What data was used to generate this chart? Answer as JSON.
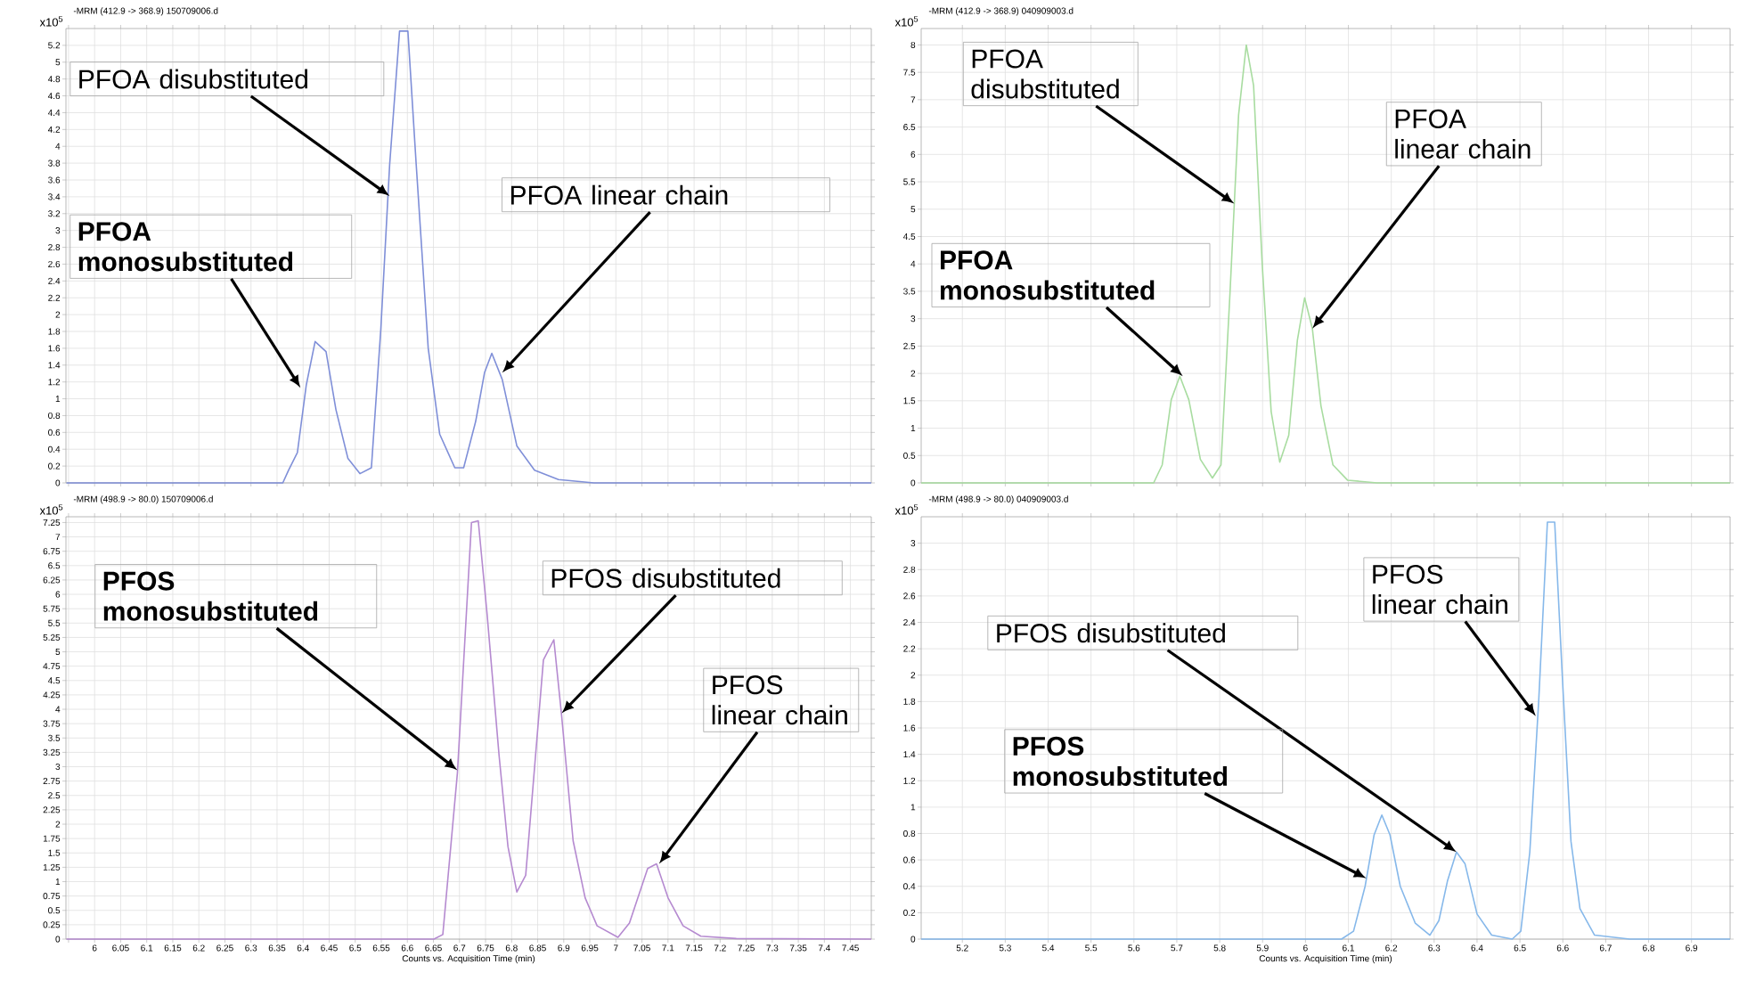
{
  "chart_data": [
    {
      "type": "line",
      "title": "-MRM (412.9 -> 368.9) 150709006.d",
      "ylabel": "x10$^{5}$",
      "tick_labels": "y",
      "grid": true,
      "xlim": [
        5.945,
        7.49
      ],
      "ylim": [
        0,
        5.4
      ],
      "xticks": [
        {
          "value": 5.95,
          "label": null
        },
        6,
        6.05,
        6.1,
        6.15,
        6.2,
        6.25,
        6.3,
        6.35,
        6.4,
        6.45,
        6.5,
        6.55,
        6.6,
        6.65,
        6.7,
        6.75,
        6.8,
        6.85,
        6.9,
        6.95,
        7,
        7.05,
        7.1,
        7.15,
        7.2,
        7.25,
        7.3,
        7.35,
        7.4,
        7.45
      ],
      "yticks": [
        0,
        0.2,
        0.4,
        0.6,
        0.8,
        1,
        1.2,
        1.4,
        1.6,
        1.8,
        2,
        2.2,
        2.4,
        2.6,
        2.8,
        3,
        3.2,
        3.4,
        3.6,
        3.8,
        4,
        4.2,
        4.4,
        4.6,
        4.8,
        5,
        5.2
      ],
      "series": [
        {
          "color": "#7f8fd8",
          "x": [
            5.946,
            6.361,
            6.372,
            6.389,
            6.406,
            6.423,
            6.444,
            6.463,
            6.486,
            6.509,
            6.531,
            6.549,
            6.566,
            6.585,
            6.601,
            6.617,
            6.64,
            6.662,
            6.691,
            6.708,
            6.731,
            6.748,
            6.762,
            6.782,
            6.81,
            6.844,
            6.89,
            6.958,
            7.49
          ],
          "values": [
            0,
            0,
            0.15,
            0.36,
            1.16,
            1.68,
            1.56,
            0.87,
            0.29,
            0.11,
            0.18,
            1.82,
            3.78,
            5.37,
            5.37,
            3.78,
            1.6,
            0.58,
            0.18,
            0.18,
            0.73,
            1.31,
            1.54,
            1.23,
            0.44,
            0.15,
            0.04,
            0,
            0
          ]
        }
      ],
      "annotations": [
        {
          "text": "PFOA disubstituted",
          "x": 6.566,
          "y": 3.41
        },
        {
          "text": "PFOA linear chain",
          "x": 6.782,
          "y": 1.31
        },
        {
          "text": "PFOA monosubstituted",
          "x": 6.395,
          "y": 1.13
        }
      ]
    },
    {
      "type": "line",
      "title": "-MRM (412.9 -> 368.9) 040909003.d",
      "ylabel": "x10$^{5}$",
      "tick_labels": "y",
      "grid": true,
      "xlim": [
        5.104,
        6.99
      ],
      "ylim": [
        0,
        8.3
      ],
      "xticks": [
        5.2,
        5.3,
        5.4,
        5.5,
        5.6,
        5.7,
        5.8,
        5.9,
        6,
        6.1,
        6.2,
        6.3,
        6.4,
        6.5,
        6.6,
        6.7,
        6.8,
        6.9
      ],
      "yticks": [
        0,
        0.5,
        1,
        1.5,
        2,
        2.5,
        3,
        3.5,
        4,
        4.5,
        5,
        5.5,
        6,
        6.5,
        7,
        7.5,
        8
      ],
      "series": [
        {
          "color": "#a8dca0",
          "x": [
            5.104,
            5.646,
            5.666,
            5.687,
            5.707,
            5.728,
            5.755,
            5.783,
            5.803,
            5.824,
            5.844,
            5.862,
            5.879,
            5.899,
            5.92,
            5.94,
            5.961,
            5.981,
            5.998,
            6.016,
            6.036,
            6.064,
            6.098,
            6.167,
            6.99
          ],
          "values": [
            0,
            0,
            0.33,
            1.52,
            1.95,
            1.52,
            0.43,
            0.09,
            0.33,
            3.47,
            6.72,
            8.0,
            7.26,
            4.01,
            1.3,
            0.38,
            0.87,
            2.6,
            3.38,
            2.82,
            1.41,
            0.33,
            0.05,
            0,
            0
          ]
        }
      ],
      "annotations": [
        {
          "text": "PFOA disubstituted",
          "x": 5.834,
          "y": 5.1
        },
        {
          "text": "PFOA linear chain",
          "x": 6.016,
          "y": 2.82
        },
        {
          "text": "PFOA monosubstituted",
          "x": 5.714,
          "y": 1.95
        }
      ]
    },
    {
      "type": "line",
      "title": "-MRM (498.9 -> 80.0) 150709006.d",
      "ylabel": "x10$^{5}$",
      "xlabel": "Counts vs. Acquisition Time (min)",
      "grid": true,
      "xlim": [
        5.945,
        7.49
      ],
      "ylim": [
        0,
        7.35
      ],
      "xticks": [
        {
          "value": 5.95,
          "label": null
        },
        6,
        6.05,
        6.1,
        6.15,
        6.2,
        6.25,
        6.3,
        6.35,
        6.4,
        6.45,
        6.5,
        6.55,
        6.6,
        6.65,
        6.7,
        6.75,
        6.8,
        6.85,
        6.9,
        6.95,
        7,
        7.05,
        7.1,
        7.15,
        7.2,
        7.25,
        7.3,
        7.35,
        7.4,
        7.45
      ],
      "yticks": [
        0,
        0.25,
        0.5,
        0.75,
        1,
        1.25,
        1.5,
        1.75,
        2,
        2.25,
        2.5,
        2.75,
        3,
        3.25,
        3.5,
        3.75,
        4,
        4.25,
        4.5,
        4.75,
        5,
        5.25,
        5.5,
        5.75,
        6,
        6.25,
        6.5,
        6.75,
        7,
        7.25
      ],
      "series": [
        {
          "color": "#b58ad0",
          "x": [
            5.946,
            6.651,
            6.668,
            6.696,
            6.723,
            6.736,
            6.753,
            6.776,
            6.793,
            6.81,
            6.827,
            6.861,
            6.881,
            6.896,
            6.918,
            6.941,
            6.964,
            7.004,
            7.026,
            7.061,
            7.078,
            7.1,
            7.129,
            7.163,
            7.231,
            7.49
          ],
          "values": [
            0,
            0,
            0.08,
            2.89,
            7.25,
            7.28,
            5.65,
            3.19,
            1.61,
            0.82,
            1.11,
            4.86,
            5.21,
            3.88,
            1.71,
            0.72,
            0.23,
            0.03,
            0.28,
            1.23,
            1.31,
            0.72,
            0.23,
            0.05,
            0.01,
            0
          ]
        }
      ],
      "annotations": [
        {
          "text": "PFOS monosubstituted",
          "x": 6.696,
          "y": 2.94
        },
        {
          "text": "PFOS disubstituted",
          "x": 6.896,
          "y": 3.93
        },
        {
          "text": "PFOS linear chain",
          "x": 7.083,
          "y": 1.31
        }
      ]
    },
    {
      "type": "line",
      "title": "-MRM (498.9 -> 80.0) 040909003.d",
      "ylabel": "x10$^{5}$",
      "xlabel": "Counts vs. Acquisition Time (min)",
      "grid": true,
      "xlim": [
        5.104,
        6.99
      ],
      "ylim": [
        0,
        3.2
      ],
      "xticks": [
        5.2,
        5.3,
        5.4,
        5.5,
        5.6,
        5.7,
        5.8,
        5.9,
        6,
        6.1,
        6.2,
        6.3,
        6.4,
        6.5,
        6.6,
        6.7,
        6.8,
        6.9
      ],
      "yticks": [
        0,
        0.2,
        0.4,
        0.6,
        0.8,
        1,
        1.2,
        1.4,
        1.6,
        1.8,
        2,
        2.2,
        2.4,
        2.6,
        2.8,
        3
      ],
      "series": [
        {
          "color": "#86b8ea",
          "x": [
            5.104,
            6.084,
            6.112,
            6.139,
            6.16,
            6.178,
            6.197,
            6.221,
            6.256,
            6.29,
            6.311,
            6.331,
            6.352,
            6.372,
            6.4,
            6.434,
            6.482,
            6.502,
            6.523,
            6.544,
            6.564,
            6.581,
            6.598,
            6.619,
            6.64,
            6.674,
            6.756,
            6.99
          ],
          "values": [
            0,
            0,
            0.06,
            0.4,
            0.79,
            0.94,
            0.79,
            0.4,
            0.12,
            0.03,
            0.14,
            0.44,
            0.66,
            0.57,
            0.19,
            0.03,
            0,
            0.06,
            0.66,
            1.82,
            3.16,
            3.16,
            2.04,
            0.74,
            0.23,
            0.03,
            0,
            0
          ]
        }
      ],
      "annotations": [
        {
          "text": "PFOS linear chain",
          "x": 6.537,
          "y": 1.69
        },
        {
          "text": "PFOS disubstituted",
          "x": 6.352,
          "y": 0.66
        },
        {
          "text": "PFOS monosubstituted",
          "x": 6.142,
          "y": 0.46
        }
      ]
    }
  ]
}
